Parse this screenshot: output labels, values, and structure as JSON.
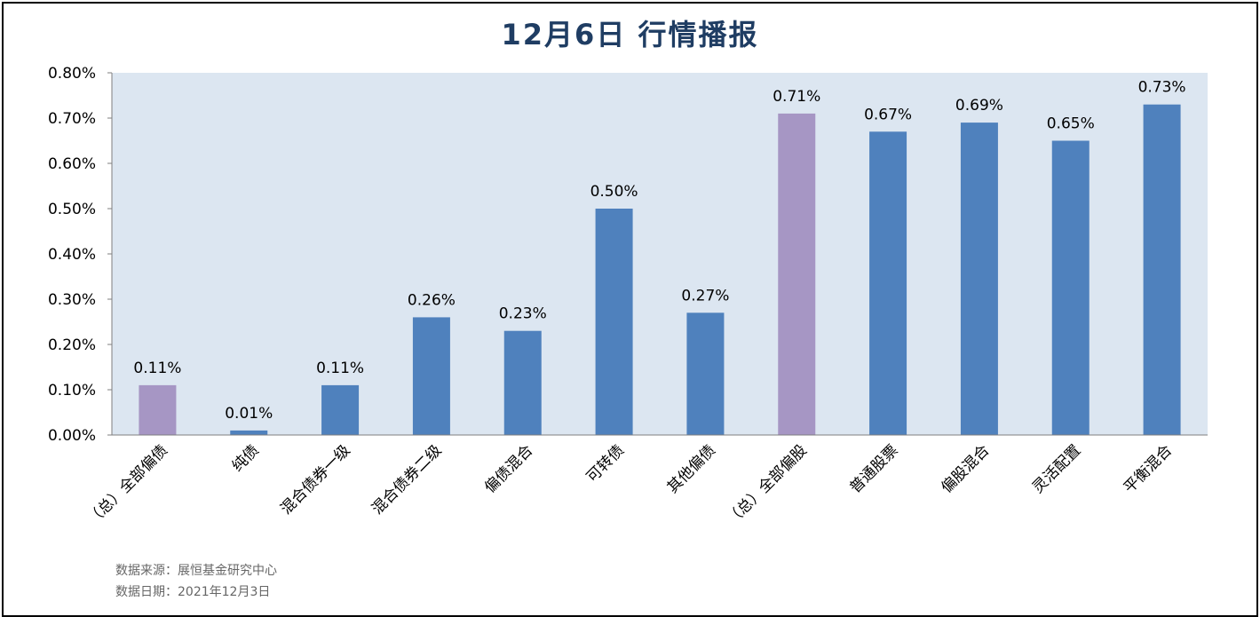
{
  "chart_data": {
    "type": "bar",
    "title": "12月6日  行情播报",
    "categories": [
      "（总）全部偏债",
      "纯债",
      "混合债券一级",
      "混合债券二级",
      "偏债混合",
      "可转债",
      "其他偏债",
      "（总）全部偏股",
      "普通股票",
      "偏股混合",
      "灵活配置",
      "平衡混合"
    ],
    "values": [
      0.11,
      0.01,
      0.11,
      0.26,
      0.23,
      0.5,
      0.27,
      0.71,
      0.67,
      0.69,
      0.65,
      0.73
    ],
    "data_labels": [
      "0.11%",
      "0.01%",
      "0.11%",
      "0.26%",
      "0.23%",
      "0.50%",
      "0.27%",
      "0.71%",
      "0.67%",
      "0.69%",
      "0.65%",
      "0.73%"
    ],
    "highlight": [
      true,
      false,
      false,
      false,
      false,
      false,
      false,
      true,
      false,
      false,
      false,
      false
    ],
    "ylim": [
      0,
      0.8
    ],
    "yticks": [
      "0.00%",
      "0.10%",
      "0.20%",
      "0.30%",
      "0.40%",
      "0.50%",
      "0.60%",
      "0.70%",
      "0.80%"
    ],
    "xlabel": "",
    "ylabel": "",
    "grid": false,
    "legend": "none"
  },
  "colors": {
    "bar": "#4f81bd",
    "highlight_bar": "#a696c4",
    "plot_bg": "#dce6f1",
    "title": "#1f3d63"
  },
  "footer": {
    "source": "数据来源：展恒基金研究中心",
    "date": "数据日期：2021年12月3日"
  }
}
